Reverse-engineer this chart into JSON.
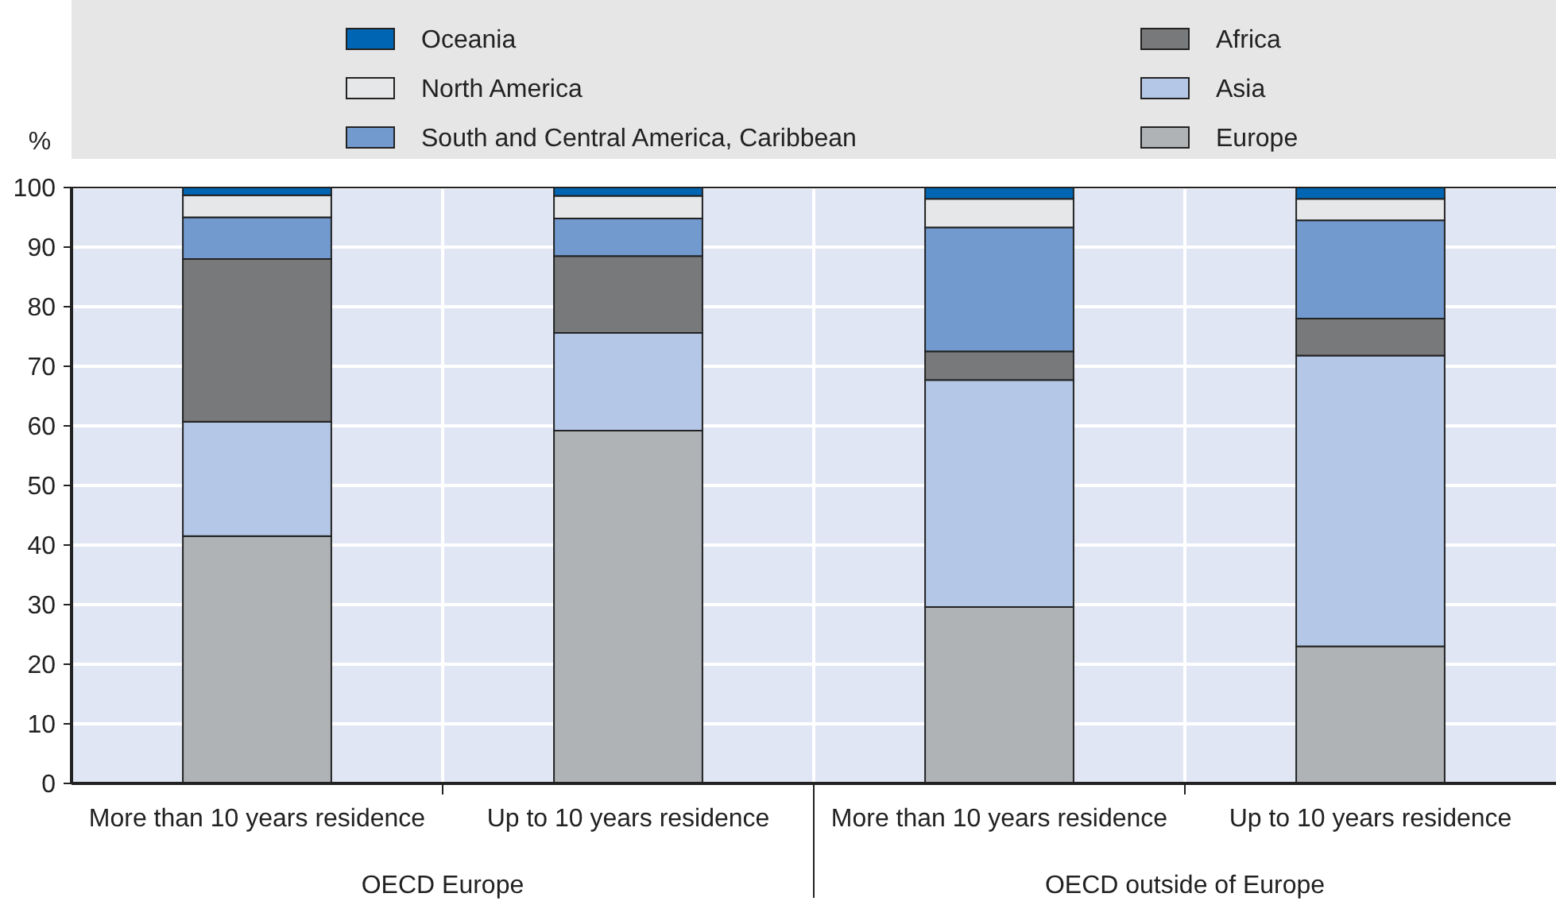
{
  "chart_data": {
    "type": "bar",
    "stacked": true,
    "ylabel": "%",
    "categories": [
      "More than 10 years residence",
      "Up to 10 years residence",
      "More than 10 years residence",
      "Up to 10 years residence"
    ],
    "series": [
      {
        "name": "Europe",
        "color": "#b0b3b6",
        "values": [
          41.5,
          59.2,
          29.6,
          23
        ]
      },
      {
        "name": "Asia",
        "color": "#b4c7e7",
        "values": [
          19.2,
          16.4,
          38.1,
          48.8
        ]
      },
      {
        "name": "Africa",
        "color": "#78797b",
        "values": [
          27.3,
          12.9,
          4.8,
          6.2
        ]
      },
      {
        "name": "South and Central America, Caribbean",
        "color": "#729acf",
        "values": [
          7,
          6.3,
          20.8,
          16.5
        ]
      },
      {
        "name": "North America",
        "color": "#e6e7e9",
        "values": [
          3.7,
          3.8,
          4.8,
          3.6
        ]
      },
      {
        "name": "Oceania",
        "color": "#0066b3",
        "values": [
          1.3,
          1.4,
          1.9,
          1.9
        ]
      }
    ],
    "annotations": [
      "OECD Europe",
      "OECD outside of Europe"
    ],
    "ylim": [
      0,
      100
    ],
    "yticks": [
      0,
      10,
      20,
      30,
      40,
      50,
      60,
      70,
      80,
      90,
      100
    ],
    "grid": true,
    "legend": "top"
  }
}
